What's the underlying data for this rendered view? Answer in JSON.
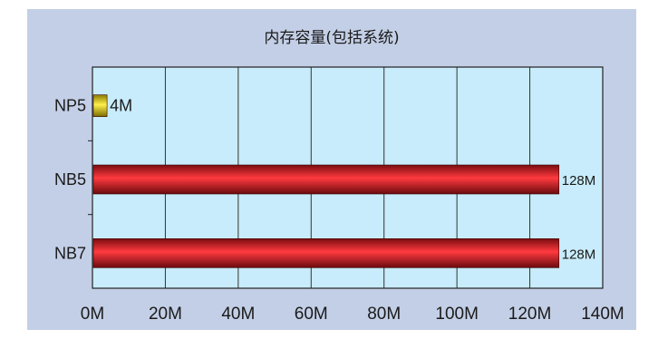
{
  "chart_data": {
    "type": "bar",
    "orientation": "horizontal",
    "title": "内存容量(包括系统)",
    "categories": [
      "NP5",
      "NB5",
      "NB7"
    ],
    "values": [
      4,
      128,
      128
    ],
    "value_labels": [
      "4M",
      "128M",
      "128M"
    ],
    "xlim": [
      0,
      140
    ],
    "x_ticks": [
      0,
      20,
      40,
      60,
      80,
      100,
      120,
      140
    ],
    "x_tick_labels": [
      "0M",
      "20M",
      "40M",
      "60M",
      "80M",
      "100M",
      "120M",
      "140M"
    ],
    "grid": "vertical",
    "legend": "none"
  },
  "colors": {
    "background": "#c3cfe6",
    "plot_area": "#c8ecfb",
    "grid": "#333333",
    "bar_small": "#e8d000",
    "bar_large": "#d8202a"
  }
}
